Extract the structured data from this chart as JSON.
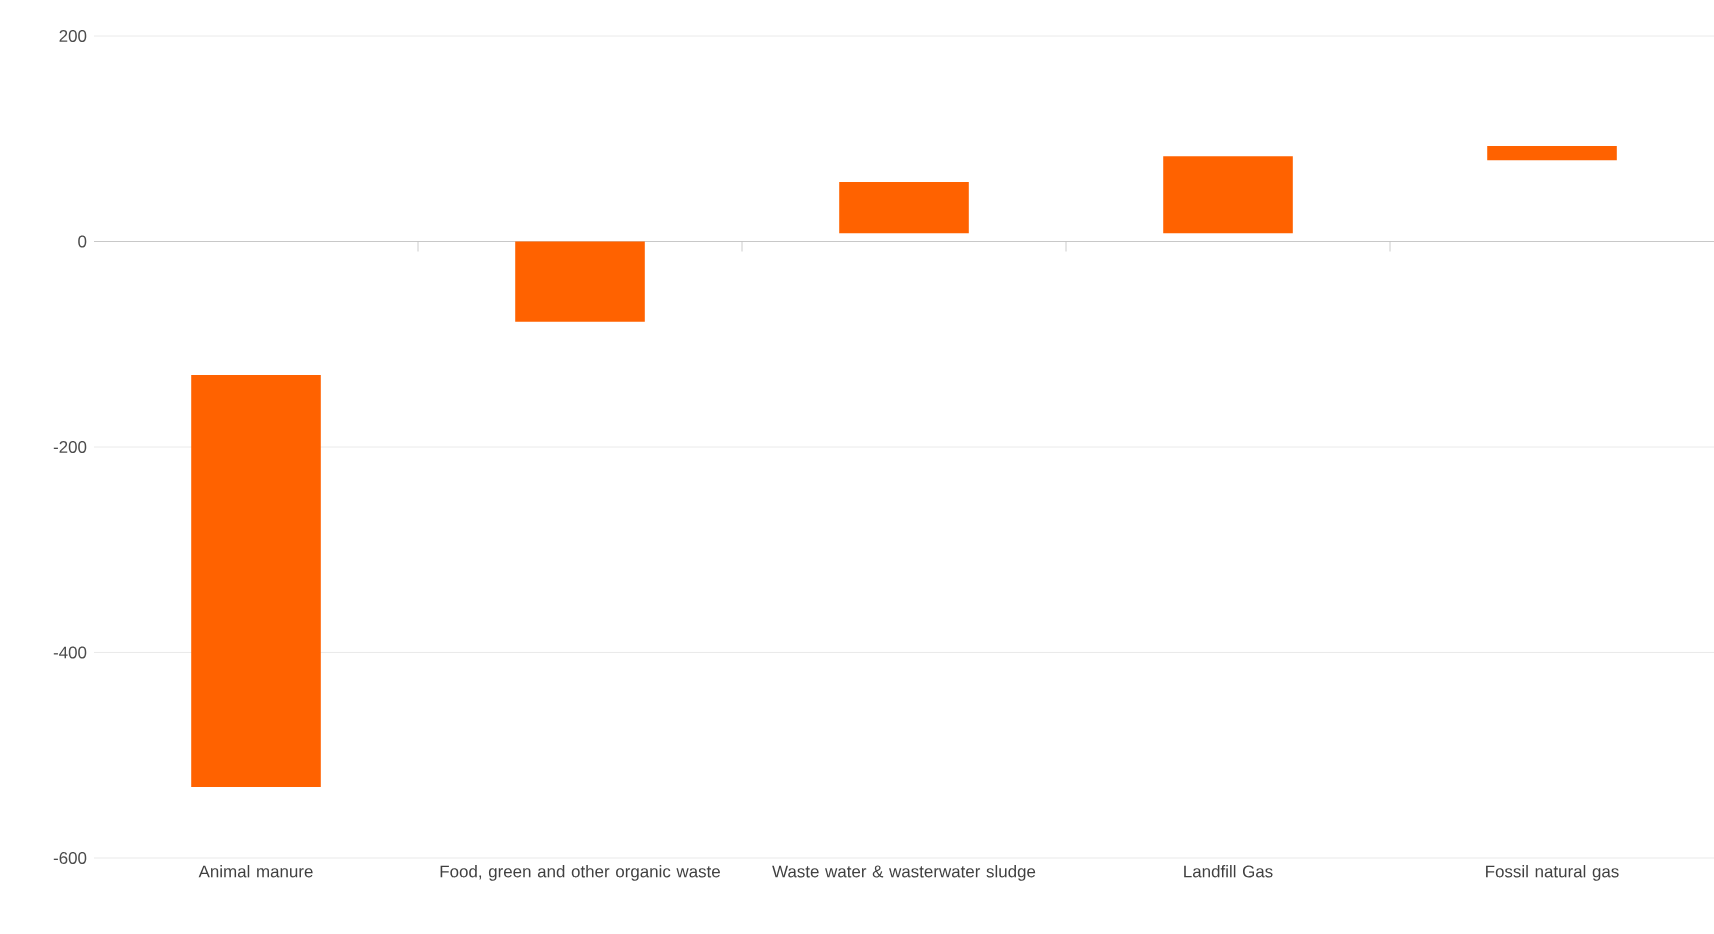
{
  "chart_data": {
    "type": "bar",
    "categories": [
      "Animal manure",
      "Food, green and other organic waste",
      "Waste water & wasterwater sludge",
      "Landfill Gas",
      "Fossil natural gas"
    ],
    "base": [
      -130,
      0,
      8,
      8,
      79
    ],
    "values": [
      -401,
      -78,
      50,
      75,
      14
    ],
    "color": "#ff6200",
    "ylim": [
      -600,
      200
    ],
    "yticks": [
      -600,
      -400,
      -200,
      0,
      200
    ],
    "grid": "y"
  }
}
